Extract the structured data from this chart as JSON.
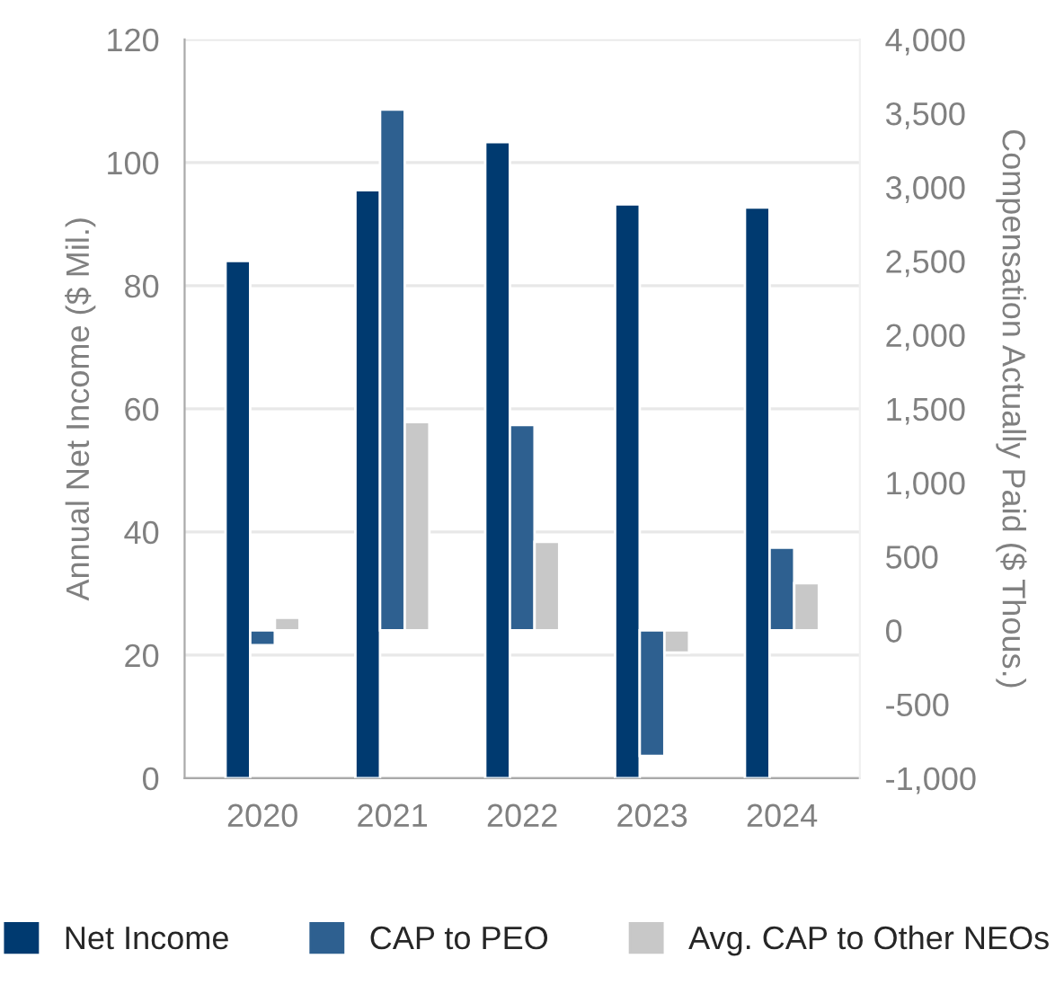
{
  "chart_data": {
    "type": "bar",
    "ylabel": "Annual Net Income ($ Mil.)",
    "y2label": "Compensation Actually Paid ($ Thous.)",
    "categories": [
      "2020",
      "2021",
      "2022",
      "2023",
      "2024"
    ],
    "series": [
      {
        "name": "Net Income",
        "color": "#003a70",
        "values": [
          84,
          95.5,
          103.3,
          93.2,
          92.7
        ]
      },
      {
        "name": "CAP to PEO",
        "color": "#2e6090",
        "axis": "y2",
        "values": [
          -100,
          3525,
          1390,
          -850,
          560
        ]
      },
      {
        "name": "Avg. CAP to Other NEOs",
        "color": "#c8c8c8",
        "axis": "y2",
        "values": [
          85,
          1410,
          600,
          -150,
          320
        ]
      }
    ],
    "ylim": [
      0,
      120
    ],
    "yticks": [
      0,
      20,
      40,
      60,
      80,
      100,
      120
    ],
    "y2lim": [
      -1000,
      4000
    ],
    "y2ticks": [
      {
        "value": -1000,
        "label": "-1,000"
      },
      {
        "value": -500,
        "label": "-500"
      },
      0,
      {
        "value": 500,
        "label": "500"
      },
      {
        "value": 1000,
        "label": "1,000"
      },
      {
        "value": 1500,
        "label": "1,500"
      },
      {
        "value": 2000,
        "label": "2,000"
      },
      {
        "value": 2500,
        "label": "2,500"
      },
      {
        "value": 3000,
        "label": "3,000"
      },
      {
        "value": 3500,
        "label": "3,500"
      },
      {
        "value": 4000,
        "label": "4,000"
      }
    ],
    "grid": "y",
    "legend": "bottom"
  }
}
